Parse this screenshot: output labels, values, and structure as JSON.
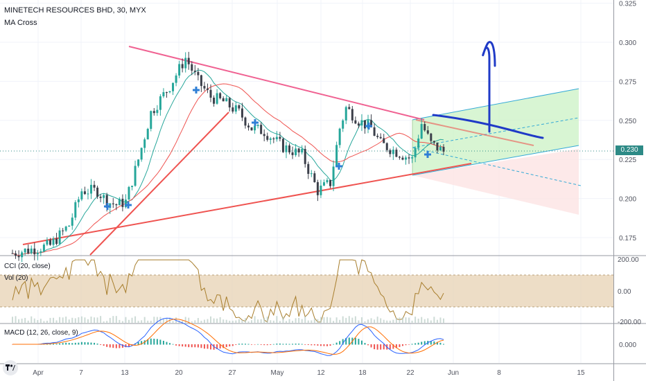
{
  "header": {
    "title": "MINETECH RESOURCES BHD, 30, MYX",
    "indicator": "MA Cross"
  },
  "panes": {
    "cci_label": "CCI (20, close)",
    "vol_label": "Vol (20)",
    "macd_label": "MACD (12, 26, close, 9)"
  },
  "current_price": "0.230",
  "colors": {
    "up": "#26a69a",
    "down": "#ef5350",
    "ma_fast": "#26a69a",
    "ma_slow": "#ef5350",
    "trend": "#ef5350",
    "resistance": "#f06292",
    "channel": "#33a9d6",
    "drawing": "#1f3ac7",
    "cci": "#a77d2b",
    "cci_band": "#e5cfae",
    "macd": "#2962ff",
    "signal": "#ff6d00"
  },
  "icons": [
    "tradingview-logo-icon",
    "cross-marker-icon"
  ],
  "chart_data": [
    {
      "type": "candlestick",
      "title": "MINETECH RESOURCES BHD, 30, MYX",
      "ylim": [
        0.155,
        0.33
      ],
      "y_ticks": [
        "0.325",
        "0.300",
        "0.275",
        "0.250",
        "0.225",
        "0.200",
        "0.175"
      ],
      "x_ticks": [
        "Apr",
        "7",
        "13",
        "20",
        "27",
        "May",
        "12",
        "18",
        "22",
        "Jun",
        "8",
        "15"
      ],
      "last_price": 0.23,
      "path_points": [
        {
          "t": 0,
          "p": 0.165
        },
        {
          "t": 12,
          "p": 0.17
        },
        {
          "t": 18,
          "p": 0.183
        },
        {
          "t": 22,
          "p": 0.205
        },
        {
          "t": 27,
          "p": 0.205
        },
        {
          "t": 30,
          "p": 0.198
        },
        {
          "t": 33,
          "p": 0.196
        },
        {
          "t": 36,
          "p": 0.198
        },
        {
          "t": 40,
          "p": 0.225
        },
        {
          "t": 44,
          "p": 0.255
        },
        {
          "t": 50,
          "p": 0.272
        },
        {
          "t": 55,
          "p": 0.29
        },
        {
          "t": 59,
          "p": 0.275
        },
        {
          "t": 63,
          "p": 0.265
        },
        {
          "t": 67,
          "p": 0.262
        },
        {
          "t": 72,
          "p": 0.255
        },
        {
          "t": 76,
          "p": 0.245
        },
        {
          "t": 80,
          "p": 0.243
        },
        {
          "t": 86,
          "p": 0.233
        },
        {
          "t": 92,
          "p": 0.228
        },
        {
          "t": 97,
          "p": 0.205
        },
        {
          "t": 101,
          "p": 0.21
        },
        {
          "t": 104,
          "p": 0.245
        },
        {
          "t": 106,
          "p": 0.258
        },
        {
          "t": 110,
          "p": 0.25
        },
        {
          "t": 114,
          "p": 0.245
        },
        {
          "t": 117,
          "p": 0.235
        },
        {
          "t": 122,
          "p": 0.23
        },
        {
          "t": 127,
          "p": 0.225
        },
        {
          "t": 130,
          "p": 0.248
        },
        {
          "t": 133,
          "p": 0.235
        },
        {
          "t": 137,
          "p": 0.23
        }
      ]
    },
    {
      "type": "line",
      "title": "CCI (20, close)",
      "ylim": [
        -200,
        200
      ],
      "y_ticks": [
        "200.00",
        "0.00",
        "-200.00"
      ],
      "band": [
        -100,
        100
      ]
    },
    {
      "type": "line",
      "title": "MACD (12, 26, close, 9)",
      "y_ticks": [
        "0.000"
      ]
    }
  ]
}
